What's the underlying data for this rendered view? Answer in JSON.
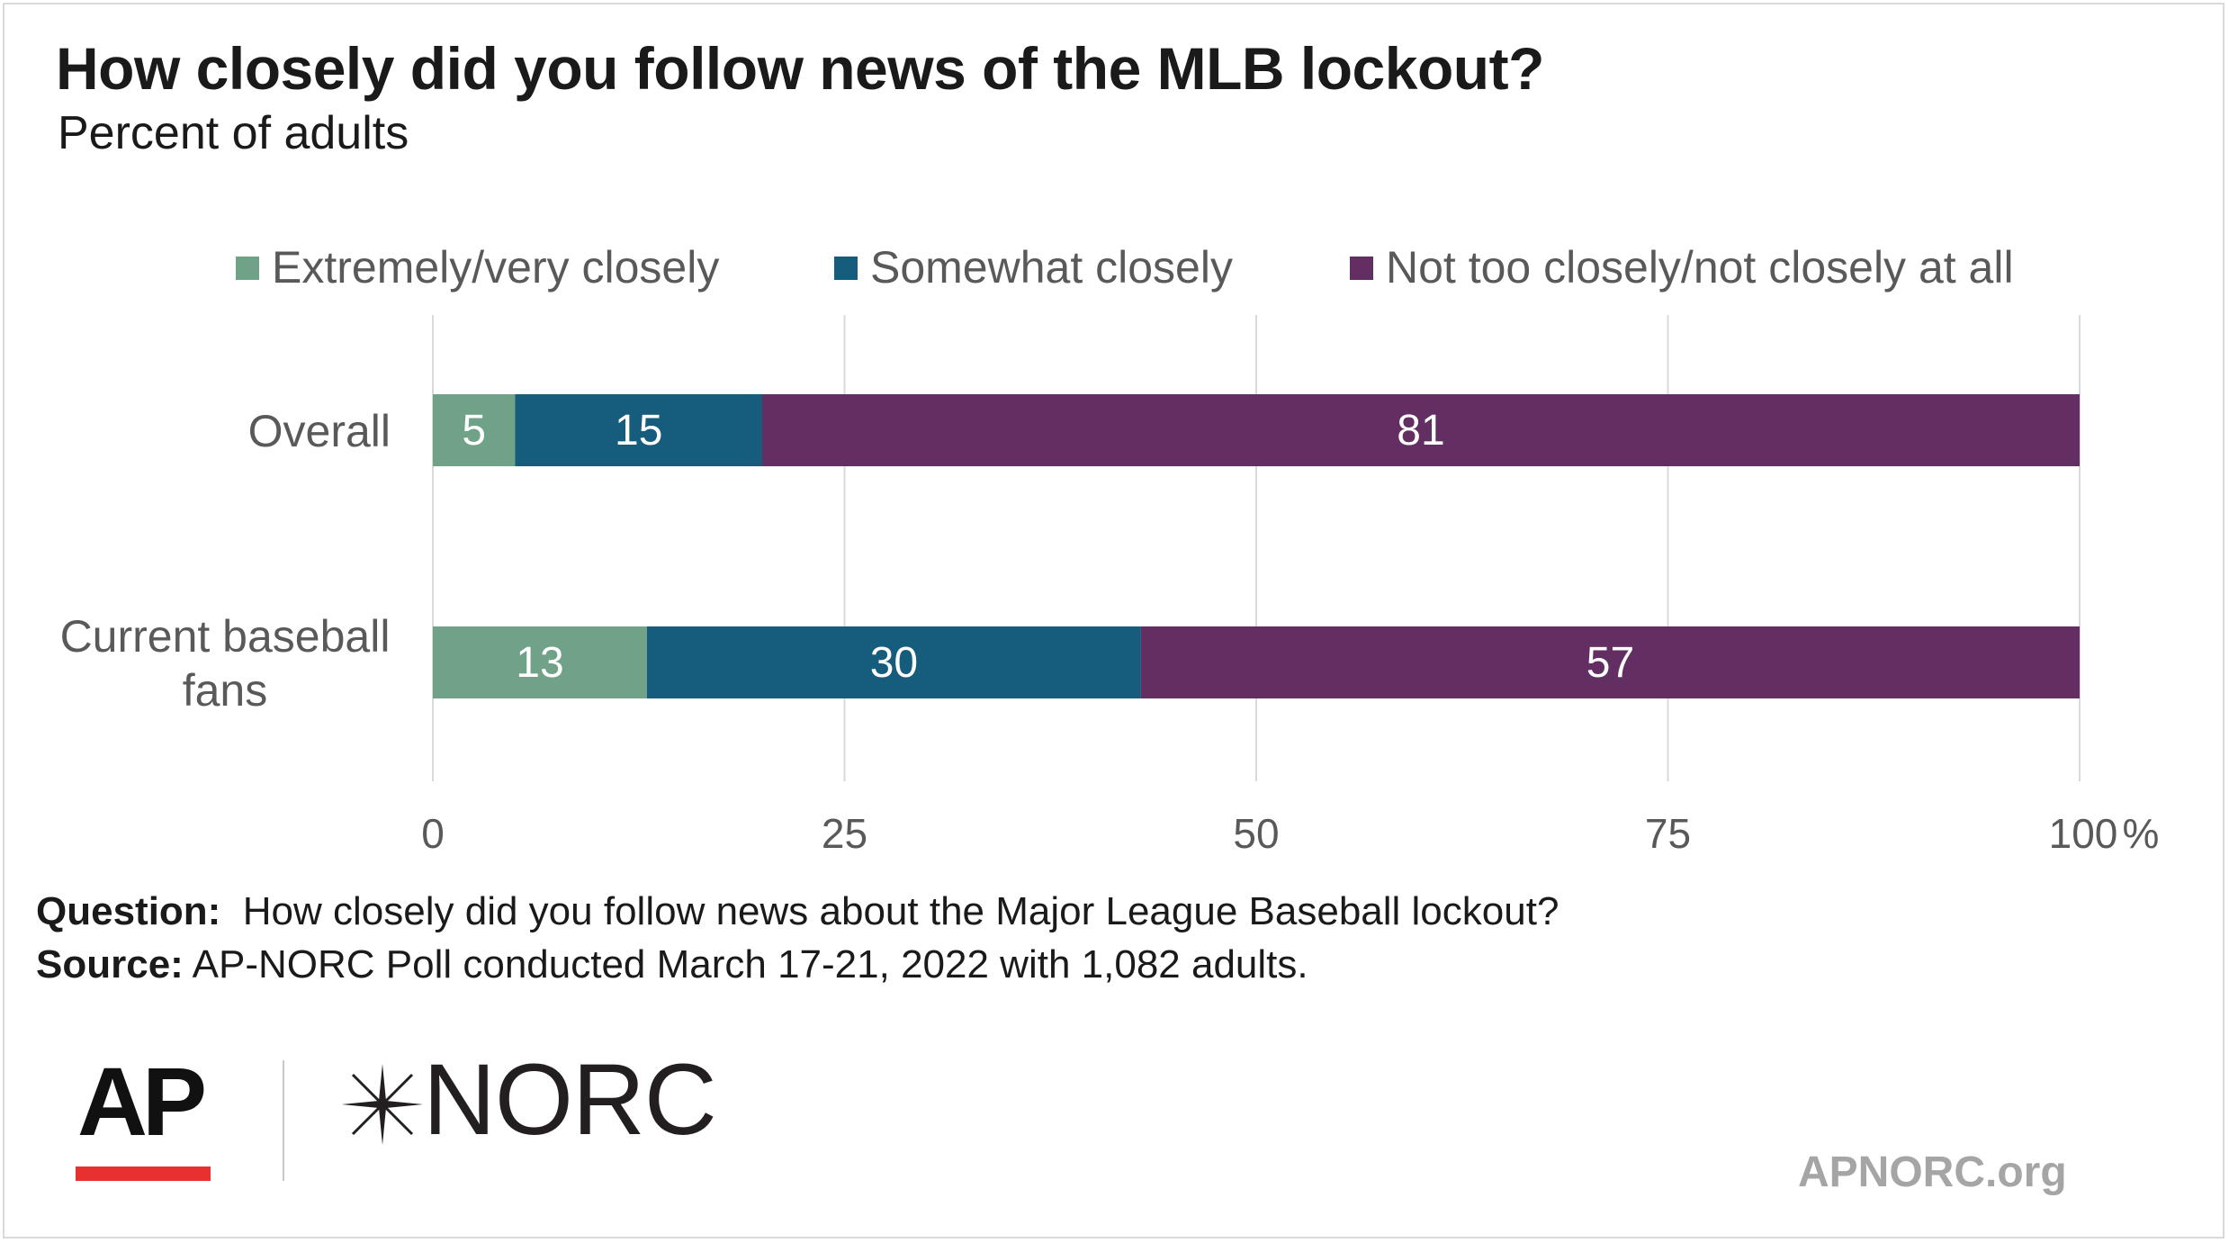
{
  "title": "How closely did you follow news of the MLB lockout?",
  "subtitle": "Percent of adults",
  "footnote": {
    "question_label": "Question:",
    "question_text": "How closely did you follow news about the Major League Baseball lockout?",
    "source_label": "Source:",
    "source_text": "AP-NORC Poll conducted March 17-21, 2022 with 1,082 adults."
  },
  "logos": {
    "ap": "AP",
    "norc": "NORC",
    "site": "APNORC.org"
  },
  "chart_data": {
    "type": "bar",
    "orientation": "horizontal",
    "stacked": true,
    "categories": [
      {
        "label": [
          "Overall"
        ]
      },
      {
        "label": [
          "Current baseball",
          "fans"
        ]
      }
    ],
    "series": [
      {
        "name": "Extremely/very closely",
        "color": "#6fa287",
        "values": [
          5,
          13
        ]
      },
      {
        "name": "Somewhat closely",
        "color": "#165c7d",
        "values": [
          15,
          30
        ]
      },
      {
        "name": "Not too closely/not closely at all",
        "color": "#632e62",
        "values": [
          81,
          57
        ]
      }
    ],
    "xlim": [
      0,
      100
    ],
    "x_ticks": [
      0,
      25,
      50,
      75,
      100
    ],
    "x_unit_suffix": "%",
    "grid": true,
    "legend_position": "top"
  }
}
